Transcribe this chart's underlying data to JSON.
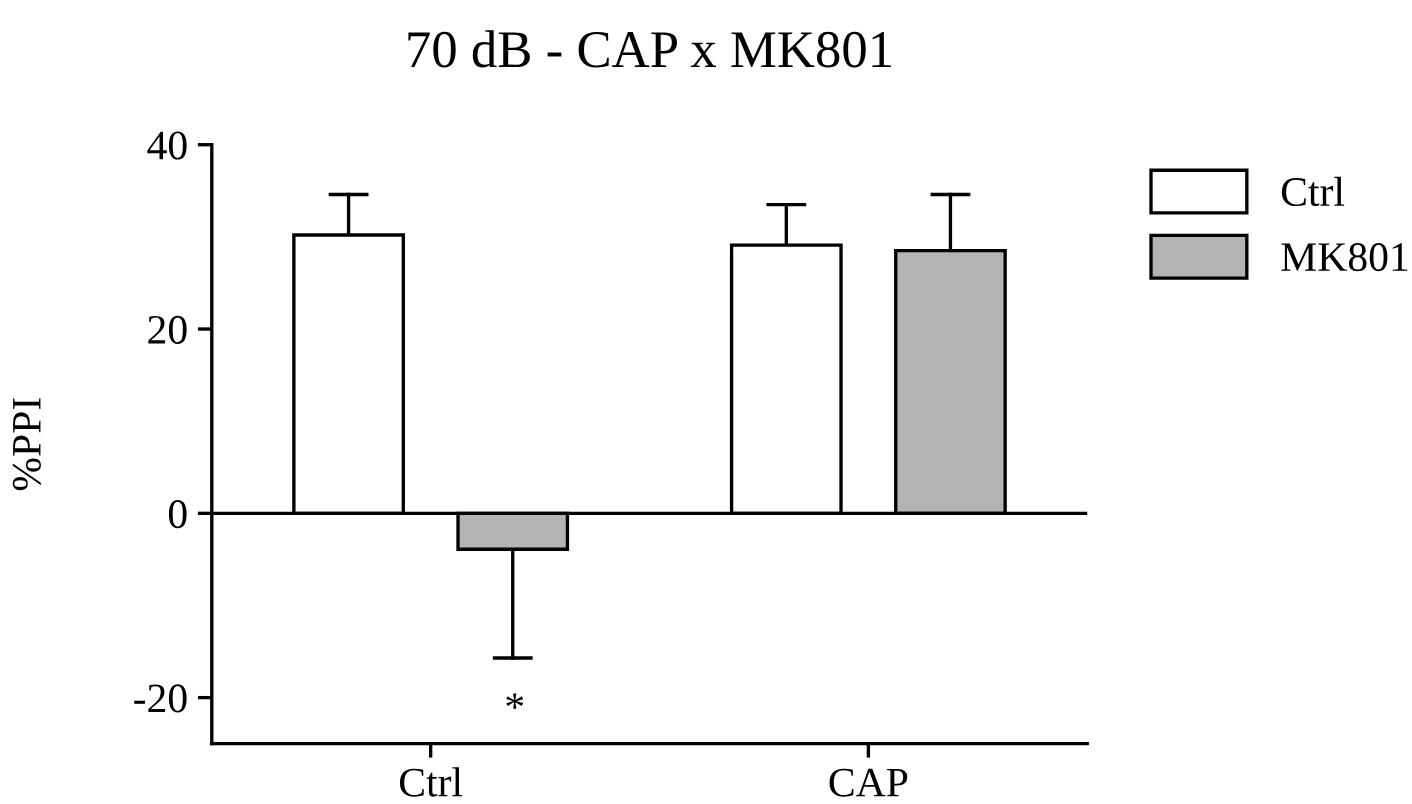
{
  "chart_data": {
    "type": "bar",
    "title": "70 dB - CAP x MK801",
    "ylabel": "%PPI",
    "categories": [
      "Ctrl",
      "CAP"
    ],
    "series": [
      {
        "name": "Ctrl",
        "color": "#ffffff",
        "values": [
          30.2,
          29.1
        ],
        "errors": [
          [
            30.2,
            34.6
          ],
          [
            29.1,
            33.5
          ]
        ]
      },
      {
        "name": "MK801",
        "color": "#b3b3b3",
        "values": [
          -3.9,
          28.5
        ],
        "errors": [
          [
            -15.7,
            -3.9
          ],
          [
            28.5,
            34.6
          ]
        ]
      }
    ],
    "ylim": [
      -25,
      40
    ],
    "yticks": [
      -20,
      0,
      20,
      40
    ],
    "ref_lines": [
      {
        "axis": "y",
        "value": 0
      }
    ],
    "annotations": [
      "*"
    ],
    "grid": false,
    "legend": "top right"
  }
}
